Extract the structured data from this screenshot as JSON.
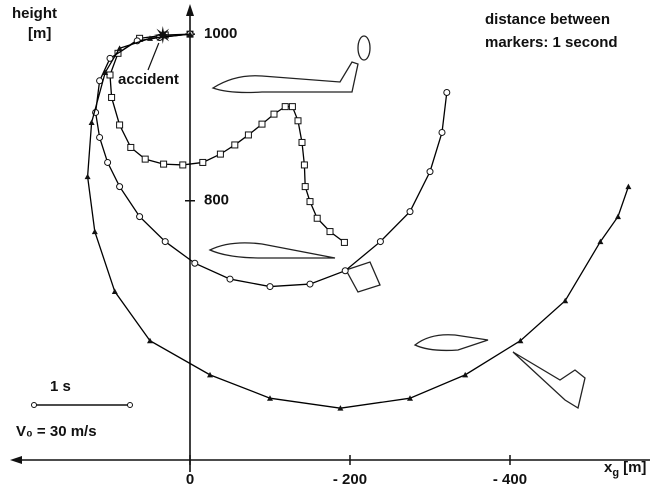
{
  "chart_data": {
    "type": "line",
    "ylabel": "height",
    "yunit": "[m]",
    "xlabel": "x",
    "xlabel_sub": "g",
    "xunit": "[m]",
    "note": [
      "distance between",
      "markers: 1 second"
    ],
    "scale_bar": {
      "label": "1 s",
      "speed": "V₀ = 30 m/s"
    },
    "accident": {
      "label": "accident",
      "x": 34,
      "y": 999
    },
    "xlim": [
      225,
      -575
    ],
    "ylim": [
      490,
      1035
    ],
    "xticks": [
      {
        "value": 0,
        "label": "0"
      },
      {
        "value": -200,
        "label": "- 200"
      },
      {
        "value": -400,
        "label": "- 400"
      }
    ],
    "yticks": [
      800,
      1000
    ],
    "series": [
      {
        "marker": "square",
        "color": "#000",
        "x": [
          0,
          31,
          63,
          90,
          100,
          98,
          88,
          74,
          56,
          33,
          9,
          -16,
          -38,
          -56,
          -73,
          -90,
          -105,
          -119,
          -128,
          -135,
          -140,
          -143,
          -144,
          -150,
          -159,
          -175,
          -193
        ],
        "values": [
          1000,
          999,
          995,
          977,
          951,
          924,
          891,
          864,
          850,
          844,
          843,
          846,
          856,
          867,
          879,
          892,
          904,
          913,
          913,
          896,
          870,
          843,
          817,
          799,
          779,
          763,
          750
        ]
      },
      {
        "marker": "circle",
        "color": "#000",
        "x": [
          0,
          38,
          66,
          100,
          113,
          118,
          113,
          103,
          88,
          63,
          31,
          -6,
          -50,
          -100,
          -150,
          -194,
          -238,
          -275,
          -300,
          -315,
          -321
        ],
        "values": [
          1000,
          996,
          992,
          971,
          944,
          906,
          876,
          846,
          817,
          781,
          751,
          725,
          706,
          697,
          700,
          716,
          751,
          787,
          835,
          882,
          930
        ]
      },
      {
        "marker": "triangle",
        "color": "#000",
        "x": [
          0,
          50,
          88,
          106,
          123,
          128,
          119,
          94,
          50,
          -25,
          -100,
          -188,
          -275,
          -344,
          -413,
          -469,
          -513,
          -535,
          -548
        ],
        "values": [
          1000,
          995,
          983,
          954,
          894,
          829,
          763,
          691,
          632,
          591,
          563,
          551,
          563,
          591,
          632,
          680,
          751,
          781,
          817
        ]
      }
    ]
  }
}
